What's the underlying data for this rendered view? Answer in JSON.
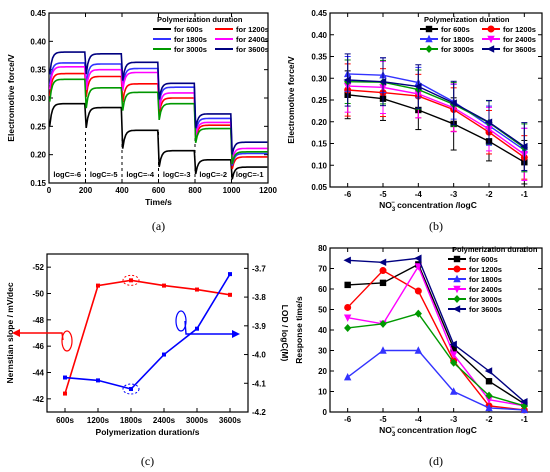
{
  "chart_data": [
    {
      "panel": "(a)",
      "type": "line",
      "xlabel": "Time/s",
      "ylabel": "Electromotive force/V",
      "xlim": [
        0,
        1200
      ],
      "ylim": [
        0.15,
        0.45
      ],
      "xticks": [
        0,
        200,
        400,
        600,
        800,
        1000,
        1200
      ],
      "yticks": [
        0.15,
        0.2,
        0.25,
        0.3,
        0.35,
        0.4,
        0.45
      ],
      "legend_title": "Polymerization duration",
      "legend_position": "top-right",
      "segment_bounds": [
        0,
        200,
        400,
        600,
        800,
        1000,
        1200
      ],
      "segment_labels": [
        "logC=-6",
        "logC=-5",
        "logC=-4",
        "logC=-3",
        "logC=-2",
        "logC=-1"
      ],
      "series": [
        {
          "name": "for 600s",
          "color": "#000000",
          "plateaus": [
            0.29,
            0.283,
            0.243,
            0.207,
            0.191,
            0.178
          ]
        },
        {
          "name": "for 1200s",
          "color": "#ff0000",
          "plateaus": [
            0.343,
            0.338,
            0.325,
            0.3,
            0.252,
            0.196
          ]
        },
        {
          "name": "for 1800s",
          "color": "#3333ff",
          "plateaus": [
            0.362,
            0.36,
            0.352,
            0.319,
            0.264,
            0.202
          ]
        },
        {
          "name": "for 2400s",
          "color": "#ff00ff",
          "plateaus": [
            0.355,
            0.35,
            0.345,
            0.309,
            0.257,
            0.211
          ]
        },
        {
          "name": "for 3000s",
          "color": "#009900",
          "plateaus": [
            0.333,
            0.318,
            0.31,
            0.29,
            0.246,
            0.205
          ]
        },
        {
          "name": "for 3600s",
          "color": "#000080",
          "plateaus": [
            0.381,
            0.378,
            0.363,
            0.326,
            0.272,
            0.222
          ]
        }
      ]
    },
    {
      "panel": "(b)",
      "type": "line",
      "xlabel_main": "NO",
      "xlabel_sub": "3",
      "xlabel_sup": "−",
      "xlabel_tail": " concentration /logC",
      "ylabel": "Electromotive force/V",
      "xlim": [
        -6.5,
        -0.5
      ],
      "ylim": [
        0.05,
        0.45
      ],
      "xticks": [
        -6,
        -5,
        -4,
        -3,
        -2,
        -1
      ],
      "yticks": [
        0.05,
        0.1,
        0.15,
        0.2,
        0.25,
        0.3,
        0.35,
        0.4,
        0.45
      ],
      "legend_title": "Polymerization duration",
      "legend_position": "top-right",
      "x": [
        -6,
        -5,
        -4,
        -3,
        -2,
        -1
      ],
      "series": [
        {
          "name": "for 600s",
          "color": "#000000",
          "marker": "square",
          "values": [
            0.262,
            0.253,
            0.227,
            0.195,
            0.155,
            0.107
          ],
          "errors": [
            0.055,
            0.05,
            0.045,
            0.06,
            0.045,
            0.05
          ]
        },
        {
          "name": "for 1200s",
          "color": "#ff0000",
          "marker": "circle",
          "values": [
            0.273,
            0.267,
            0.259,
            0.228,
            0.176,
            0.118
          ],
          "errors": [
            0.06,
            0.055,
            0.05,
            0.05,
            0.05,
            0.05
          ]
        },
        {
          "name": "for 1800s",
          "color": "#3333ff",
          "marker": "triangle",
          "values": [
            0.31,
            0.307,
            0.29,
            0.246,
            0.191,
            0.135
          ],
          "errors": [
            0.04,
            0.04,
            0.035,
            0.04,
            0.045,
            0.05
          ]
        },
        {
          "name": "for 2400s",
          "color": "#ff00ff",
          "marker": "tridown",
          "values": [
            0.282,
            0.279,
            0.264,
            0.232,
            0.183,
            0.125
          ],
          "errors": [
            0.06,
            0.06,
            0.055,
            0.055,
            0.05,
            0.06
          ]
        },
        {
          "name": "for 3000s",
          "color": "#009900",
          "marker": "diamond",
          "values": [
            0.292,
            0.291,
            0.274,
            0.24,
            0.198,
            0.14
          ],
          "errors": [
            0.05,
            0.05,
            0.045,
            0.05,
            0.05,
            0.055
          ]
        },
        {
          "name": "for 3600s",
          "color": "#000080",
          "marker": "tri-left",
          "values": [
            0.296,
            0.292,
            0.281,
            0.243,
            0.199,
            0.143
          ],
          "errors": [
            0.06,
            0.055,
            0.05,
            0.05,
            0.05,
            0.055
          ]
        }
      ]
    },
    {
      "panel": "(c)",
      "type": "line",
      "xlabel": "Polymerization duration/s",
      "ylabel_left": "Nernstian slope / mV/dec",
      "ylabel_right": "LOD / logC(M)",
      "categories": [
        "600s",
        "1200s",
        "1800s",
        "2400s",
        "3000s",
        "3600s"
      ],
      "ylim_left": [
        -41,
        -53
      ],
      "yticks_left": [
        -42,
        -44,
        -46,
        -48,
        -50,
        -52
      ],
      "ylim_right": [
        -4.2,
        -3.65
      ],
      "yticks_right": [
        -4.2,
        -4.1,
        -4.0,
        -3.9,
        -3.8,
        -3.7
      ],
      "series": [
        {
          "name": "Nernstian slope",
          "axis": "left",
          "color": "#ff0000",
          "values": [
            -42.4,
            -50.6,
            -51.0,
            -50.6,
            -50.3,
            -49.9
          ]
        },
        {
          "name": "LOD",
          "axis": "right",
          "color": "#0000ff",
          "values": [
            -4.08,
            -4.09,
            -4.12,
            -4.0,
            -3.91,
            -3.72
          ]
        }
      ]
    },
    {
      "panel": "(d)",
      "type": "line",
      "xlabel_main": "NO",
      "xlabel_sub": "3",
      "xlabel_sup": "−",
      "xlabel_tail": " concentration /logC",
      "ylabel": "Response time/s",
      "xlim": [
        -6.5,
        -0.5
      ],
      "ylim": [
        0,
        80
      ],
      "xticks": [
        -6,
        -5,
        -4,
        -3,
        -2,
        -1
      ],
      "yticks": [
        0,
        10,
        20,
        30,
        40,
        50,
        60,
        70,
        80
      ],
      "legend_title": "Polymerization duration",
      "legend_position": "top-right",
      "x": [
        -6,
        -5,
        -4,
        -3,
        -2,
        -1
      ],
      "series": [
        {
          "name": "for 600s",
          "color": "#000000",
          "marker": "square",
          "values": [
            62,
            63,
            72,
            31,
            15,
            4
          ]
        },
        {
          "name": "for 1200s",
          "color": "#ff0000",
          "marker": "circle",
          "values": [
            51,
            69,
            59,
            25,
            3,
            1
          ]
        },
        {
          "name": "for 1800s",
          "color": "#3333ff",
          "marker": "triangle",
          "values": [
            17,
            30,
            30,
            10,
            2,
            1
          ]
        },
        {
          "name": "for 2400s",
          "color": "#ff00ff",
          "marker": "tridown",
          "values": [
            46,
            43,
            71,
            28,
            6,
            3
          ]
        },
        {
          "name": "for 3000s",
          "color": "#009900",
          "marker": "diamond",
          "values": [
            41,
            43,
            48,
            24,
            8,
            3
          ]
        },
        {
          "name": "for 3600s",
          "color": "#000080",
          "marker": "tri-left",
          "values": [
            74,
            73,
            75,
            33,
            20,
            5
          ]
        }
      ]
    }
  ]
}
